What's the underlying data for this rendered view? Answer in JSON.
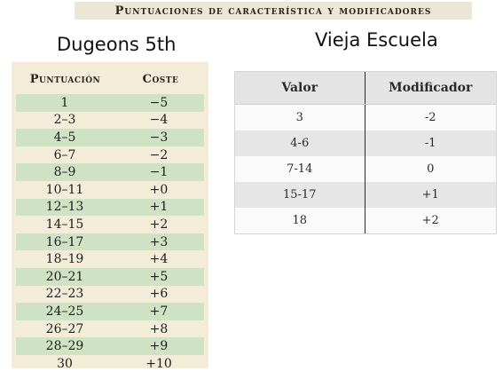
{
  "banner": "Puntuaciones de característica y modificadores",
  "dnd5e": {
    "heading": "Dugeons 5th",
    "columns": [
      "Puntuación",
      "Coste"
    ],
    "rows": [
      {
        "score": "1",
        "cost": "−5"
      },
      {
        "score": "2–3",
        "cost": "−4"
      },
      {
        "score": "4–5",
        "cost": "−3"
      },
      {
        "score": "6–7",
        "cost": "−2"
      },
      {
        "score": "8–9",
        "cost": "−1"
      },
      {
        "score": "10–11",
        "cost": "+0"
      },
      {
        "score": "12–13",
        "cost": "+1"
      },
      {
        "score": "14–15",
        "cost": "+2"
      },
      {
        "score": "16–17",
        "cost": "+3"
      },
      {
        "score": "18–19",
        "cost": "+4"
      },
      {
        "score": "20–21",
        "cost": "+5"
      },
      {
        "score": "22–23",
        "cost": "+6"
      },
      {
        "score": "24–25",
        "cost": "+7"
      },
      {
        "score": "26–27",
        "cost": "+8"
      },
      {
        "score": "28–29",
        "cost": "+9"
      },
      {
        "score": "30",
        "cost": "+10"
      }
    ]
  },
  "old_school": {
    "heading": "Vieja Escuela",
    "columns": [
      "Valor",
      "Modificador"
    ],
    "rows": [
      {
        "value": "3",
        "modifier": "-2"
      },
      {
        "value": "4-6",
        "modifier": "-1"
      },
      {
        "value": "7-14",
        "modifier": "0"
      },
      {
        "value": "15-17",
        "modifier": "+1"
      },
      {
        "value": "18",
        "modifier": "+2"
      }
    ]
  },
  "colors": {
    "panel_bg": "#f2ecd8",
    "row_green": "#cfe2c4",
    "row_grey": "#e6e6e6"
  }
}
